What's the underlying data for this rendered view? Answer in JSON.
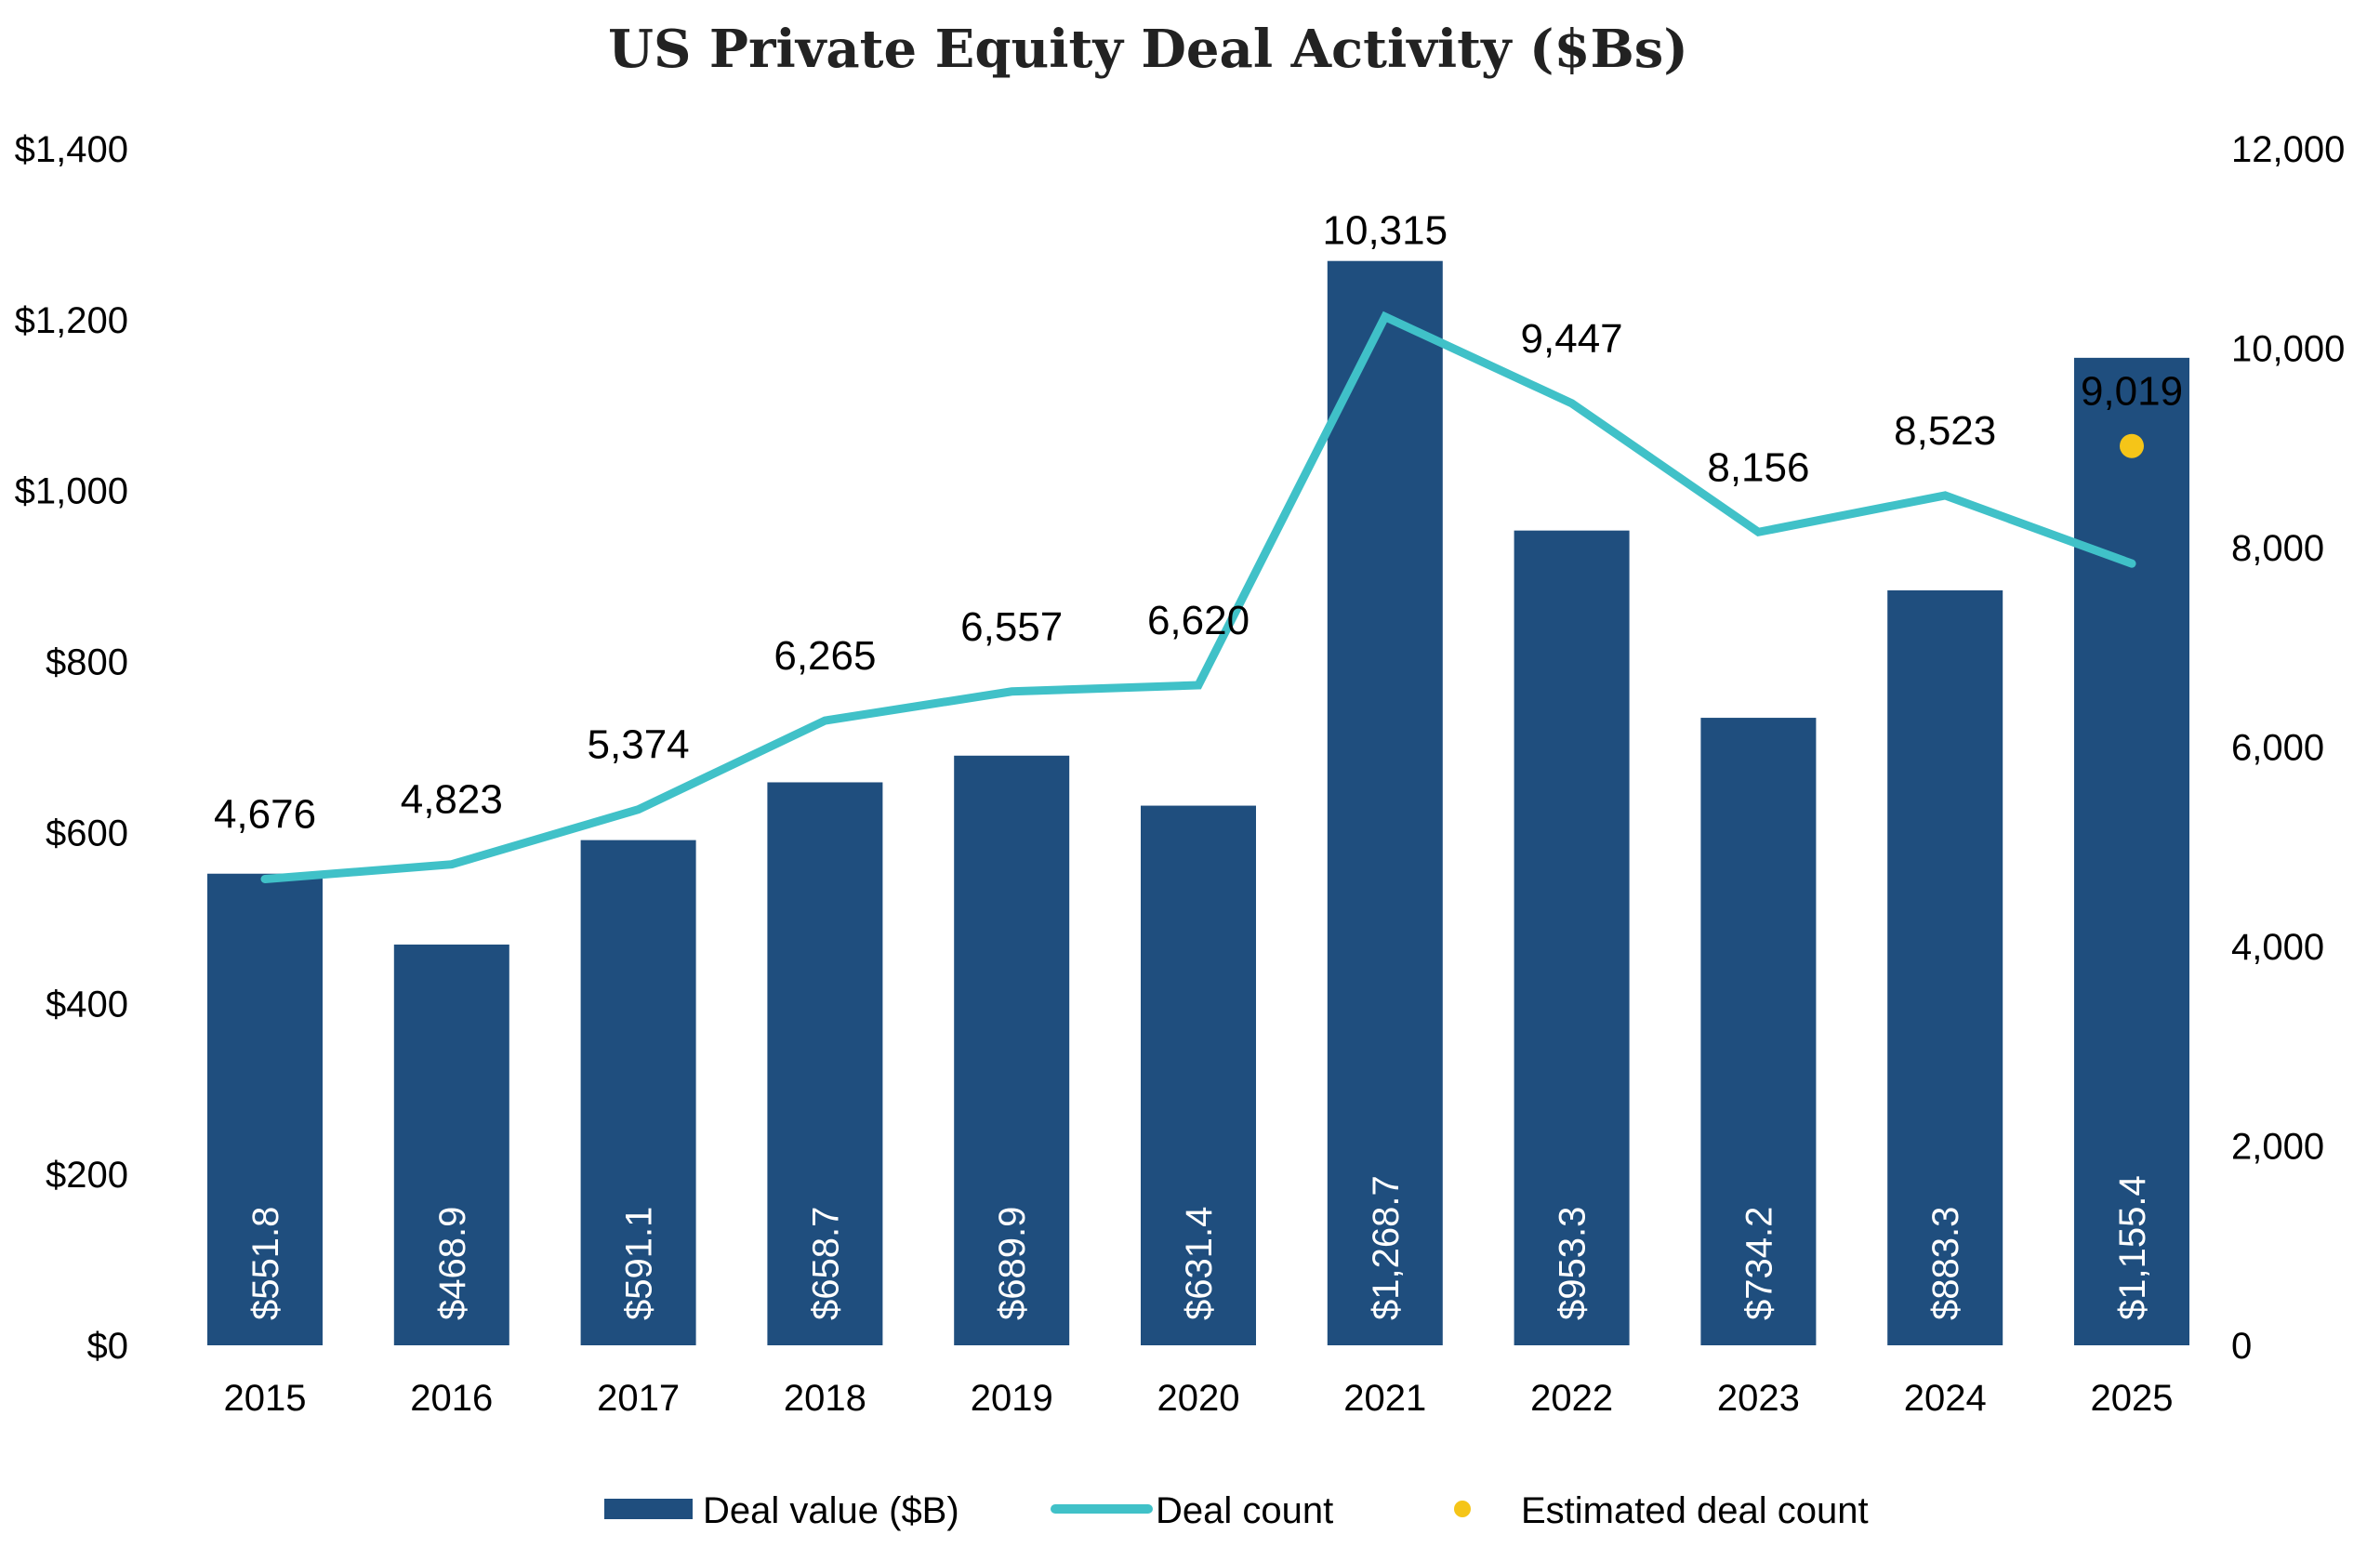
{
  "chart_data": {
    "type": "bar",
    "title": "US Private Equity Deal Activity ($Bs)",
    "categories": [
      "2015",
      "2016",
      "2017",
      "2018",
      "2019",
      "2020",
      "2021",
      "2022",
      "2023",
      "2024",
      "2025"
    ],
    "series": [
      {
        "name": "Deal value ($B)",
        "type": "bar",
        "axis": "left",
        "color": "#1f4e7e",
        "values": [
          551.8,
          468.9,
          591.1,
          658.7,
          689.9,
          631.4,
          1268.7,
          953.3,
          734.2,
          883.3,
          1155.4
        ],
        "labels": [
          "$551.8",
          "$468.9",
          "$591.1",
          "$658.7",
          "$689.9",
          "$631.4",
          "$1,268.7",
          "$953.3",
          "$734.2",
          "$883.3",
          "$1,155.4"
        ]
      },
      {
        "name": "Deal count",
        "type": "line",
        "axis": "right",
        "color": "#40c1c8",
        "values": [
          4676,
          4823,
          5374,
          6265,
          6557,
          6620,
          10315,
          9447,
          8156,
          8523,
          7840
        ],
        "labels": [
          "4,676",
          "4,823",
          "5,374",
          "6,265",
          "6,557",
          "6,620",
          "10,315",
          "9,447",
          "8,156",
          "8,523",
          ""
        ]
      },
      {
        "name": "Estimated deal count",
        "type": "scatter",
        "axis": "right",
        "color": "#f5c518",
        "points": [
          {
            "x": "2025",
            "y": 9019,
            "label": "9,019"
          }
        ]
      }
    ],
    "left_axis": {
      "label": "",
      "range": [
        0,
        1400
      ],
      "ticks": [
        0,
        200,
        400,
        600,
        800,
        1000,
        1200,
        1400
      ],
      "tick_labels": [
        "$0",
        "$200",
        "$400",
        "$600",
        "$800",
        "$1,000",
        "$1,200",
        "$1,400"
      ]
    },
    "right_axis": {
      "label": "",
      "range": [
        0,
        12000
      ],
      "ticks": [
        0,
        2000,
        4000,
        6000,
        8000,
        10000,
        12000
      ],
      "tick_labels": [
        "0",
        "2,000",
        "4,000",
        "6,000",
        "8,000",
        "10,000",
        "12,000"
      ]
    },
    "xlabel": "",
    "grid": false,
    "legend": {
      "position": "bottom",
      "entries": [
        "Deal value ($B)",
        "Deal count",
        "Estimated deal count"
      ]
    }
  }
}
